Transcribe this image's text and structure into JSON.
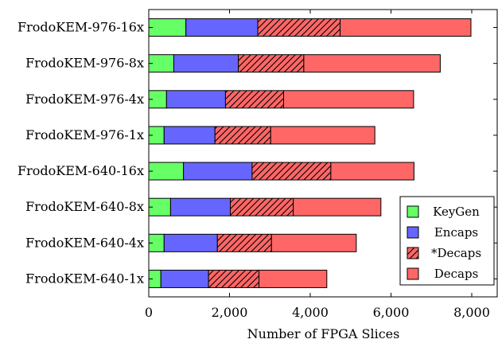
{
  "chart_data": {
    "type": "bar",
    "orientation": "horizontal",
    "stacked": true,
    "title": "",
    "xlabel": "Number of FPGA Slices",
    "ylabel": "",
    "xlim": [
      0,
      8600
    ],
    "xticks": [
      0,
      2000,
      4000,
      6000,
      8000
    ],
    "xtick_labels": [
      "0",
      "2,000",
      "4,000",
      "6,000",
      "8,000"
    ],
    "categories": [
      "FrodoKEM-976-16x",
      "FrodoKEM-976-8x",
      "FrodoKEM-976-4x",
      "FrodoKEM-976-1x",
      "FrodoKEM-640-16x",
      "FrodoKEM-640-8x",
      "FrodoKEM-640-4x",
      "FrodoKEM-640-1x"
    ],
    "series": [
      {
        "name": "KeyGen",
        "color": "#66ff66",
        "pattern": "solid",
        "values": [
          920,
          620,
          440,
          380,
          860,
          540,
          380,
          300
        ]
      },
      {
        "name": "Encaps",
        "color": "#6666ff",
        "pattern": "solid",
        "values": [
          1780,
          1600,
          1460,
          1260,
          1700,
          1480,
          1320,
          1180
        ]
      },
      {
        "name": "*Decaps",
        "color": "#ff6666",
        "pattern": "hatched",
        "values": [
          2040,
          1620,
          1440,
          1380,
          1950,
          1560,
          1340,
          1250
        ]
      },
      {
        "name": "Decaps",
        "color": "#ff6666",
        "pattern": "solid",
        "values": [
          3240,
          3380,
          3220,
          2580,
          2060,
          2170,
          2100,
          1680
        ]
      }
    ],
    "legend_position": "bottom-right",
    "grid": false
  }
}
